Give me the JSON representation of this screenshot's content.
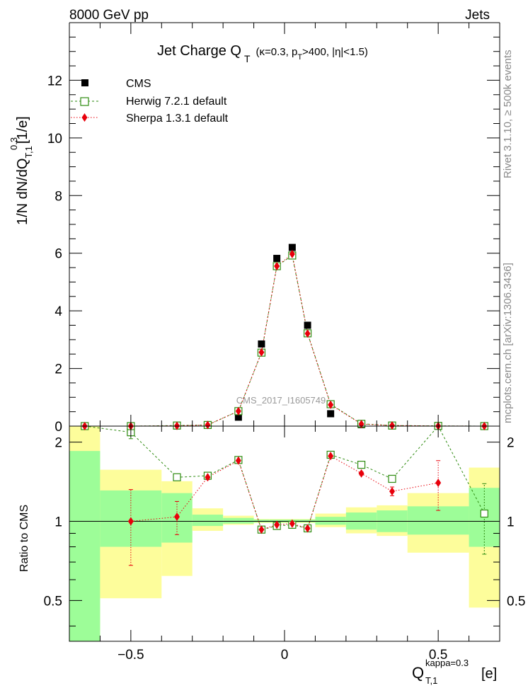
{
  "header": {
    "left": "8000 GeV pp",
    "right": "Jets"
  },
  "side_labels": {
    "rivet": "Rivet 3.1.10, ≥ 500k events",
    "mcplots": "mcplots.cern.ch [arXiv:1306.3436]"
  },
  "watermark": "CMS_2017_I1605749",
  "title": {
    "main": "Jet Charge Q",
    "main_sub": "T",
    "cond_prefix": "(κ=0.3, p",
    "cond_psub": "T",
    "cond_suffix": ">400, |η|<1.5)"
  },
  "ylabel_top": {
    "main": "1/N dN/dQ",
    "sup": "0.3",
    "sub": "T,1",
    "unit": "[1/e]"
  },
  "ylabel_bottom": "Ratio to CMS",
  "xlabel": {
    "main": "Q",
    "sup": "kappa=0.3",
    "sub": "T,1",
    "unit": "[e]"
  },
  "colors": {
    "cms": "#000000",
    "herwig": "#2e8b10",
    "sherpa": "#e8000b",
    "band_stat": "#9dfd98",
    "band_total": "#fdfd9b"
  },
  "chart_data": {
    "type": "scatter",
    "x_range": [
      -0.7,
      0.7
    ],
    "x_ticks": [
      "-0.5",
      "0",
      "0.5"
    ],
    "main_panel": {
      "y_range": [
        0,
        14
      ],
      "y_ticks": [
        "0",
        "2",
        "4",
        "6",
        "8",
        "10",
        "12"
      ],
      "series": [
        {
          "name": "CMS",
          "x": [
            -0.65,
            -0.5,
            -0.35,
            -0.25,
            -0.15,
            -0.075,
            -0.025,
            0.025,
            0.075,
            0.15,
            0.25,
            0.35,
            0.5,
            0.65
          ],
          "y": [
            0.0,
            0.0,
            0.01,
            0.03,
            0.31,
            2.85,
            5.82,
            6.2,
            3.5,
            0.43,
            0.05,
            0.01,
            0.003,
            0.0
          ]
        },
        {
          "name": "Herwig 7.2.1 default",
          "x": [
            -0.65,
            -0.5,
            -0.35,
            -0.25,
            -0.15,
            -0.075,
            -0.025,
            0.025,
            0.075,
            0.15,
            0.25,
            0.35,
            0.5,
            0.65
          ],
          "y": [
            0.0,
            0.0,
            0.02,
            0.04,
            0.52,
            2.55,
            5.55,
            5.92,
            3.22,
            0.76,
            0.08,
            0.02,
            0.007,
            0.0
          ]
        },
        {
          "name": "Sherpa 1.3.1 default",
          "x": [
            -0.65,
            -0.5,
            -0.35,
            -0.25,
            -0.15,
            -0.075,
            -0.025,
            0.025,
            0.075,
            0.15,
            0.25,
            0.35,
            0.5,
            0.65
          ],
          "y": [
            0.0,
            0.0,
            0.01,
            0.04,
            0.52,
            2.56,
            5.55,
            5.97,
            3.21,
            0.74,
            0.07,
            0.02,
            0.004,
            0.0
          ]
        }
      ]
    },
    "ratio_panel": {
      "y_range": [
        0.35,
        2.3
      ],
      "y_ticks": [
        "0.5",
        "1",
        "2"
      ],
      "bins": [
        {
          "lo": -0.7,
          "hi": -0.6,
          "stat": [
            0.35,
            1.85
          ],
          "total": [
            0.35,
            2.3
          ]
        },
        {
          "lo": -0.6,
          "hi": -0.4,
          "stat": [
            0.8,
            1.31
          ],
          "total": [
            0.51,
            1.57
          ]
        },
        {
          "lo": -0.4,
          "hi": -0.3,
          "stat": [
            0.83,
            1.28
          ],
          "total": [
            0.62,
            1.42
          ]
        },
        {
          "lo": -0.3,
          "hi": -0.2,
          "stat": [
            0.96,
            1.06
          ],
          "total": [
            0.92,
            1.12
          ]
        },
        {
          "lo": -0.2,
          "hi": -0.1,
          "stat": [
            0.98,
            1.03
          ],
          "total": [
            0.97,
            1.05
          ]
        },
        {
          "lo": -0.1,
          "hi": -0.05,
          "stat": [
            0.99,
            1.015
          ],
          "total": [
            0.985,
            1.02
          ]
        },
        {
          "lo": -0.05,
          "hi": 0.0,
          "stat": [
            0.99,
            1.015
          ],
          "total": [
            0.985,
            1.02
          ]
        },
        {
          "lo": 0.0,
          "hi": 0.05,
          "stat": [
            0.99,
            1.015
          ],
          "total": [
            0.985,
            1.02
          ]
        },
        {
          "lo": 0.05,
          "hi": 0.1,
          "stat": [
            0.99,
            1.015
          ],
          "total": [
            0.985,
            1.02
          ]
        },
        {
          "lo": 0.1,
          "hi": 0.2,
          "stat": [
            0.97,
            1.04
          ],
          "total": [
            0.95,
            1.07
          ]
        },
        {
          "lo": 0.2,
          "hi": 0.3,
          "stat": [
            0.93,
            1.08
          ],
          "total": [
            0.9,
            1.13
          ]
        },
        {
          "lo": 0.3,
          "hi": 0.4,
          "stat": [
            0.91,
            1.1
          ],
          "total": [
            0.88,
            1.15
          ]
        },
        {
          "lo": 0.4,
          "hi": 0.6,
          "stat": [
            0.89,
            1.14
          ],
          "total": [
            0.76,
            1.28
          ]
        },
        {
          "lo": 0.6,
          "hi": 0.7,
          "stat": [
            0.8,
            1.34
          ],
          "total": [
            0.47,
            1.6
          ]
        }
      ],
      "series": [
        {
          "name": "Herwig 7.2.1 default",
          "x": [
            -0.65,
            -0.5,
            -0.35,
            -0.25,
            -0.15,
            -0.075,
            -0.025,
            0.025,
            0.075,
            0.15,
            0.25,
            0.35,
            0.5,
            0.65
          ],
          "y": [
            2.45,
            2.18,
            1.47,
            1.49,
            1.71,
            0.93,
            0.96,
            0.97,
            0.94,
            1.79,
            1.64,
            1.45,
            2.35,
            1.07
          ],
          "err": [
            null,
            0.12,
            0.03,
            0.02,
            0.01,
            0.005,
            0.005,
            0.005,
            0.005,
            0.01,
            0.02,
            0.03,
            null,
            0.32
          ]
        },
        {
          "name": "Sherpa 1.3.1 default",
          "x": [
            -0.65,
            -0.5,
            -0.35,
            -0.25,
            -0.15,
            -0.075,
            -0.025,
            0.025,
            0.075,
            0.15,
            0.25,
            0.35,
            0.5,
            0.65
          ],
          "y": [
            null,
            1.0,
            1.04,
            1.47,
            1.7,
            0.93,
            0.97,
            0.98,
            0.94,
            1.77,
            1.52,
            1.3,
            1.4,
            null
          ],
          "err": [
            null,
            0.32,
            0.15,
            0.03,
            0.01,
            0.005,
            0.005,
            0.005,
            0.005,
            0.01,
            0.02,
            0.05,
            0.3,
            null
          ]
        }
      ]
    }
  }
}
